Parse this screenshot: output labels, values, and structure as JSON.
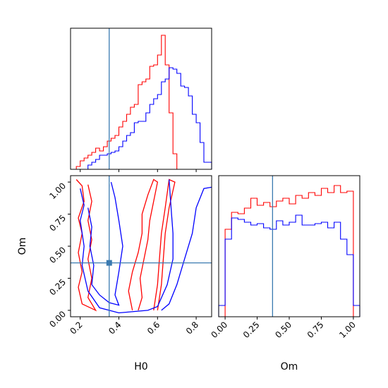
{
  "chart_data": [
    {
      "panel": "H0 marginal",
      "type": "histogram",
      "xlim": [
        0.15,
        0.88
      ],
      "bin_edges": [
        0.18,
        0.2,
        0.22,
        0.24,
        0.26,
        0.28,
        0.3,
        0.32,
        0.34,
        0.36,
        0.38,
        0.4,
        0.42,
        0.44,
        0.46,
        0.48,
        0.5,
        0.52,
        0.54,
        0.56,
        0.58,
        0.6,
        0.62,
        0.64,
        0.66,
        0.68,
        0.7,
        0.72,
        0.74,
        0.76,
        0.78,
        0.8,
        0.82,
        0.84,
        0.86,
        0.88
      ],
      "truth_x": 0.35,
      "series": [
        {
          "color": "#ff0000",
          "values": [
            0.02,
            0.06,
            0.08,
            0.1,
            0.12,
            0.15,
            0.13,
            0.16,
            0.2,
            0.22,
            0.24,
            0.3,
            0.34,
            0.39,
            0.44,
            0.46,
            0.6,
            0.62,
            0.64,
            0.73,
            0.74,
            0.81,
            0.95,
            0.74,
            0.4,
            0.11,
            0,
            0,
            0,
            0,
            0,
            0,
            0,
            0,
            0
          ]
        },
        {
          "color": "#0000ff",
          "values": [
            0,
            0,
            0,
            0.03,
            0.05,
            0.07,
            0.1,
            0.1,
            0.11,
            0.12,
            0.13,
            0.16,
            0.2,
            0.24,
            0.26,
            0.33,
            0.34,
            0.34,
            0.4,
            0.46,
            0.5,
            0.53,
            0.62,
            0.64,
            0.72,
            0.71,
            0.68,
            0.59,
            0.58,
            0.52,
            0.39,
            0.33,
            0.19,
            0.05,
            0.05
          ]
        }
      ]
    },
    {
      "panel": "H0 vs Om",
      "type": "contour",
      "xlabel": "H0",
      "ylabel": "Om",
      "xlim": [
        0.15,
        0.88
      ],
      "ylim": [
        -0.05,
        1.05
      ],
      "xticks": [
        "0.2",
        "0.4",
        "0.6",
        "0.8"
      ],
      "yticks": [
        "0.00",
        "0.25",
        "0.50",
        "0.75",
        "1.00"
      ],
      "truth": {
        "x": 0.35,
        "y": 0.37
      },
      "series": [
        {
          "color": "#ff0000",
          "levels": [
            [
              [
                0.18,
                1.02
              ],
              [
                0.21,
                0.97
              ],
              [
                0.22,
                0.85
              ],
              [
                0.19,
                0.72
              ],
              [
                0.21,
                0.6
              ],
              [
                0.19,
                0.45
              ],
              [
                0.21,
                0.3
              ],
              [
                0.19,
                0.18
              ],
              [
                0.21,
                0.05
              ],
              [
                0.28,
                0.0
              ],
              [
                0.24,
                0.1
              ],
              [
                0.26,
                0.25
              ],
              [
                0.24,
                0.4
              ],
              [
                0.26,
                0.55
              ],
              [
                0.24,
                0.7
              ],
              [
                0.26,
                0.85
              ],
              [
                0.24,
                0.98
              ]
            ],
            [
              [
                0.47,
                0.0
              ],
              [
                0.45,
                0.15
              ],
              [
                0.47,
                0.3
              ],
              [
                0.5,
                0.45
              ],
              [
                0.52,
                0.6
              ],
              [
                0.52,
                0.75
              ],
              [
                0.55,
                0.9
              ],
              [
                0.58,
                1.02
              ],
              [
                0.6,
                1.0
              ],
              [
                0.58,
                0.85
              ],
              [
                0.56,
                0.7
              ],
              [
                0.55,
                0.55
              ],
              [
                0.53,
                0.4
              ],
              [
                0.51,
                0.25
              ],
              [
                0.52,
                0.1
              ],
              [
                0.5,
                0.0
              ]
            ],
            [
              [
                0.58,
                0.0
              ],
              [
                0.6,
                0.2
              ],
              [
                0.61,
                0.4
              ],
              [
                0.62,
                0.6
              ],
              [
                0.64,
                0.8
              ],
              [
                0.66,
                1.02
              ],
              [
                0.69,
                1.0
              ],
              [
                0.66,
                0.8
              ],
              [
                0.64,
                0.6
              ],
              [
                0.63,
                0.4
              ],
              [
                0.62,
                0.2
              ],
              [
                0.6,
                0.0
              ]
            ]
          ]
        },
        {
          "color": "#0000ff",
          "levels": [
            [
              [
                0.2,
                0.95
              ],
              [
                0.22,
                0.82
              ],
              [
                0.2,
                0.7
              ],
              [
                0.22,
                0.5
              ],
              [
                0.21,
                0.35
              ],
              [
                0.24,
                0.15
              ],
              [
                0.3,
                0.02
              ],
              [
                0.4,
                -0.02
              ],
              [
                0.55,
                0.0
              ],
              [
                0.6,
                0.03
              ],
              [
                0.65,
                0.2
              ],
              [
                0.68,
                0.4
              ],
              [
                0.68,
                0.6
              ],
              [
                0.67,
                0.8
              ],
              [
                0.66,
                1.02
              ]
            ],
            [
              [
                0.24,
                0.8
              ],
              [
                0.26,
                0.65
              ],
              [
                0.25,
                0.5
              ],
              [
                0.27,
                0.35
              ],
              [
                0.26,
                0.2
              ],
              [
                0.3,
                0.12
              ],
              [
                0.35,
                0.06
              ],
              [
                0.4,
                0.04
              ],
              [
                0.38,
                0.12
              ],
              [
                0.4,
                0.3
              ],
              [
                0.42,
                0.5
              ],
              [
                0.4,
                0.7
              ],
              [
                0.38,
                0.88
              ],
              [
                0.36,
                1.0
              ]
            ],
            [
              [
                0.62,
                0.0
              ],
              [
                0.66,
                0.05
              ],
              [
                0.7,
                0.2
              ],
              [
                0.74,
                0.4
              ],
              [
                0.78,
                0.6
              ],
              [
                0.8,
                0.8
              ],
              [
                0.84,
                0.95
              ],
              [
                0.88,
                0.96
              ]
            ]
          ]
        }
      ]
    },
    {
      "panel": "Om marginal",
      "type": "histogram",
      "xlabel": "Om",
      "xlim": [
        -0.05,
        1.05
      ],
      "xticks": [
        "0.00",
        "0.25",
        "0.50",
        "0.75",
        "1.00"
      ],
      "bin_edges": [
        -0.05,
        0,
        0.05,
        0.1,
        0.15,
        0.2,
        0.25,
        0.3,
        0.35,
        0.4,
        0.45,
        0.5,
        0.55,
        0.6,
        0.65,
        0.7,
        0.75,
        0.8,
        0.85,
        0.9,
        0.95,
        1.0,
        1.05
      ],
      "truth_x": 0.37,
      "series": [
        {
          "color": "#ff0000",
          "values": [
            0,
            0.62,
            0.74,
            0.73,
            0.77,
            0.84,
            0.79,
            0.81,
            0.78,
            0.82,
            0.84,
            0.8,
            0.86,
            0.84,
            0.88,
            0.86,
            0.91,
            0.88,
            0.93,
            0.88,
            0.89,
            0
          ]
        },
        {
          "color": "#0000ff",
          "values": [
            0.08,
            0.55,
            0.7,
            0.69,
            0.67,
            0.65,
            0.66,
            0.63,
            0.62,
            0.68,
            0.65,
            0.67,
            0.72,
            0.65,
            0.65,
            0.66,
            0.67,
            0.63,
            0.67,
            0.55,
            0.44,
            0.08
          ]
        }
      ]
    }
  ]
}
